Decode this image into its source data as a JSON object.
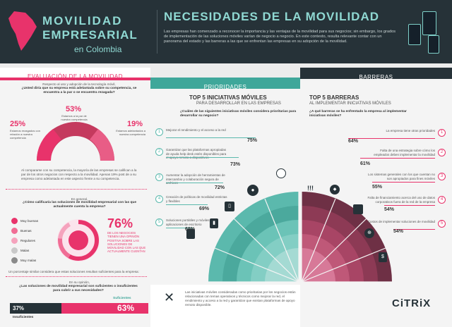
{
  "header": {
    "brand_line1": "MOVILIDAD",
    "brand_line2": "EMPRESARIAL",
    "brand_line3": "en Colombia",
    "title": "NECESIDADES DE LA MOVILIDAD",
    "body": "Las empresas han comenzado a reconocer la importancia y las ventajas de la movilidad para sus negocios; sin embargo, los grados de implementación de las soluciones móviles varían de negocio a negocio. En este contexto, resulta relevante contar con un panorama del estado y las barreras a las que se enfrentan las empresas en su adopción de la movilidad."
  },
  "sections": {
    "evaluacion": "EVALUACIÓN DE LA MOVILIDAD",
    "prioridades": "PRIORIDADES",
    "barreras": "BARRERAS"
  },
  "evaluacion": {
    "intro": "Respecto al uso y adopción de la tecnología móvil,",
    "question": "¿Usted diría que su empresa está adelantada sobre su competencia, se encuentra a la par o se encuentra rezagada?",
    "stat_left_value": "25%",
    "stat_left_label": "Estamos rezagados con relación a nuestra competencia",
    "stat_mid_value": "53%",
    "stat_mid_label": "Estamos a la par de nuestra competencia",
    "stat_right_value": "19%",
    "stat_right_label": "Estamos adelantados a nuestra competencia",
    "compare_text": "Al compararse con su competencia, la mayoría de las empresas se califican a la par de los otros negocios con respecto a la movilidad. Apenas 19% post de a su empresa como adelantada en este aspecto frente a su competencia.",
    "q2_intro": "En general,",
    "q2": "¿Cómo calificaría las soluciones de movilidad empresarial con las que actualmente cuenta la empresa?",
    "ratings": [
      {
        "label": "Muy buenas",
        "color": "#e8336b"
      },
      {
        "label": "Buenas",
        "color": "#f06d95"
      },
      {
        "label": "Regulares",
        "color": "#f5a3bd"
      },
      {
        "label": "Malas",
        "color": "#c9c9c9"
      },
      {
        "label": "Muy malas",
        "color": "#8a8a8a"
      }
    ],
    "stat76_value": "76%",
    "stat76_text": "DE LOS NEGOCIOS TIENEN UNA OPINIÓN POSITIVA SOBRE LAS SOLUCIONES DE MOVILIDAD CON LAS QUE ACTUALMENTE CUENTAN",
    "footer_note": "Un porcentaje similar considera que estas soluciones resultan suficientes para la empresa:",
    "q3_intro": "En su opinión,",
    "q3": "¿Las soluciones de movilidad empresarial son suficientes o insuficientes para cubrir a sus necesidades?",
    "insuf_value": "37%",
    "insuf_label": "Insuficientes",
    "suf_value": "63%",
    "suf_label": "Suficientes"
  },
  "prioridades": {
    "title": "TOP 5 INICIATIVAS MÓVILES",
    "subtitle": "PARA DESARROLLAR EN LAS EMPRESAS",
    "question": "¿Cuáles de las siguientes iniciativas móviles considera prioritarias para desarrollar su negocio?",
    "items": [
      {
        "n": "1",
        "text": "Mejorar el rendimiento y el acceso a la red",
        "value": "75%"
      },
      {
        "n": "2",
        "text": "Garantizar que las plataformas apropiadas de ayuda help desk estén disponibles para el apoyo remoto a dispositivos",
        "value": "73%"
      },
      {
        "n": "3",
        "text": "Aumentar la adopción de herramientas de intercambio y colaboración segura de archivos",
        "value": "72%"
      },
      {
        "n": "4",
        "text": "Creación de políticas de movilidad estrictas y flexibles",
        "value": "69%"
      },
      {
        "n": "5",
        "text": "Soluciones portátiles y móviles para aplicaciones de escritorio",
        "value": "69%"
      }
    ],
    "footer": "Las iniciativas móviles consideradas como prioritarias por los negocios están relacionadas con temas operativos y técnicos como mejorar la red, el rendimiento y acceso a la red y garantizar que existan plataformas de apoyo remoto disponible."
  },
  "barreras": {
    "title": "TOP 5 BARRERAS",
    "subtitle": "AL IMPLEMENTAR INICIATIVAS MÓVILES",
    "question": "¿A qué barreras se ha enfrentado la empresa al implementar iniciativas móviles?",
    "items": [
      {
        "n": "1",
        "text": "La empresa tiene otras prioridades",
        "value": "64%"
      },
      {
        "n": "2",
        "text": "Falta de una estrategia sobre cómo los empleados deben implementar la movilidad",
        "value": "61%"
      },
      {
        "n": "3",
        "text": "Los sistemas generales con los que cuentan no son apropiados para fines móviles",
        "value": "55%"
      },
      {
        "n": "4",
        "text": "Falta de financiamiento acerca del uso de datos corporativos fuera de la red de la empresa",
        "value": "54%"
      },
      {
        "n": "5",
        "text": "Costos de implementar soluciones de movilidad",
        "value": "54%"
      }
    ],
    "logo": "CiTRiX"
  },
  "colors": {
    "pink": "#e8336b",
    "teal": "#3fa79a",
    "dark": "#263238",
    "mint": "#8fd8d2"
  }
}
